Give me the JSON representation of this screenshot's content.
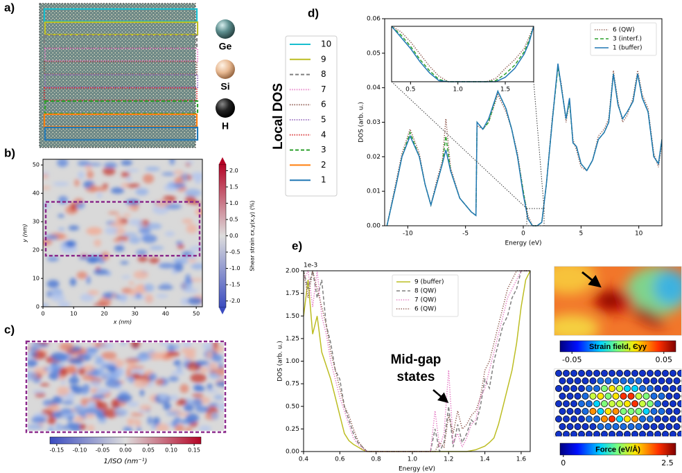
{
  "panel_labels": {
    "a": "a)",
    "b": "b)",
    "c": "c)",
    "d": "d)",
    "e": "e)"
  },
  "panel_a": {
    "atoms": [
      "Ge",
      "Si",
      "H"
    ],
    "layer_legend": {
      "title": "Local DOS",
      "entries": [
        {
          "name": "10",
          "color": "#17becf",
          "dash": "solid"
        },
        {
          "name": "9",
          "color": "#bcbd22",
          "dash": "solid"
        },
        {
          "name": "8",
          "color": "#7f7f7f",
          "dash": "dashed"
        },
        {
          "name": "7",
          "color": "#e377c2",
          "dash": "dotted"
        },
        {
          "name": "6",
          "color": "#8c564b",
          "dash": "dotted"
        },
        {
          "name": "5",
          "color": "#9467bd",
          "dash": "dotted"
        },
        {
          "name": "4",
          "color": "#d62728",
          "dash": "dotted"
        },
        {
          "name": "3",
          "color": "#2ca02c",
          "dash": "dashed"
        },
        {
          "name": "2",
          "color": "#ff7f0e",
          "dash": "solid"
        },
        {
          "name": "1",
          "color": "#1f77b4",
          "dash": "solid"
        }
      ]
    }
  },
  "chart_data": [
    {
      "type": "line",
      "xlabel": "Energy (eV)",
      "ylabel": "DOS (arb. u.)",
      "xlim": [
        -12,
        12
      ],
      "ylim": [
        0,
        0.06
      ],
      "xticks": [
        -10,
        -5,
        0,
        5,
        10
      ],
      "yticks": [
        {
          "value": 0,
          "label": "0.00"
        },
        0.01,
        0.02,
        0.03,
        0.04,
        0.05,
        0.06
      ],
      "legend": "upper right",
      "x": [
        -11.8,
        -11,
        -10.5,
        -9.8,
        -9,
        -8.5,
        -8,
        -7.5,
        -7,
        -6.7,
        -6.3,
        -5.5,
        -4.5,
        -4.1,
        -4,
        -3.5,
        -3,
        -2.2,
        -1.5,
        -1,
        -0.5,
        0,
        0.4,
        0.8,
        1.2,
        1.6,
        2,
        2.5,
        3,
        3.3,
        3.7,
        4,
        4.3,
        4.6,
        5,
        5.5,
        6,
        6.5,
        7,
        7.4,
        7.8,
        8.2,
        8.6,
        9,
        9.5,
        9.9,
        10.3,
        10.8,
        11.3,
        11.7,
        12
      ],
      "series": [
        {
          "name": "6 (QW)",
          "color": "#8c564b",
          "dash": "dotted",
          "values": [
            0,
            0.013,
            0.021,
            0.028,
            0.021,
            0.012,
            0.006,
            0.013,
            0.019,
            0.031,
            0.017,
            0.008,
            0.004,
            0.003,
            0.029,
            0.028,
            0.03,
            0.038,
            0.033,
            0.028,
            0.021,
            0.01,
            0.003,
            0,
            0,
            0.001,
            0.012,
            0.031,
            0.046,
            0.041,
            0.03,
            0.036,
            0.025,
            0.022,
            0.017,
            0.016,
            0.019,
            0.026,
            0.028,
            0.031,
            0.045,
            0.036,
            0.03,
            0.032,
            0.037,
            0.045,
            0.038,
            0.034,
            0.021,
            0.017,
            0.024
          ]
        },
        {
          "name": "3 (interf.)",
          "color": "#2ca02c",
          "dash": "dashed",
          "values": [
            0,
            0.012,
            0.02,
            0.027,
            0.02,
            0.012,
            0.006,
            0.012,
            0.018,
            0.026,
            0.016,
            0.008,
            0.004,
            0.003,
            0.03,
            0.028,
            0.03,
            0.039,
            0.034,
            0.028,
            0.02,
            0.01,
            0.002,
            0,
            0,
            0.001,
            0.012,
            0.03,
            0.046,
            0.04,
            0.031,
            0.036,
            0.024,
            0.023,
            0.018,
            0.016,
            0.019,
            0.025,
            0.027,
            0.03,
            0.044,
            0.035,
            0.031,
            0.033,
            0.036,
            0.044,
            0.037,
            0.033,
            0.02,
            0.018,
            0.025
          ]
        },
        {
          "name": "1 (buffer)",
          "color": "#1f77b4",
          "dash": "solid",
          "values": [
            0,
            0.012,
            0.02,
            0.026,
            0.02,
            0.012,
            0.006,
            0.012,
            0.018,
            0.022,
            0.016,
            0.008,
            0.004,
            0.003,
            0.03,
            0.028,
            0.031,
            0.039,
            0.034,
            0.028,
            0.02,
            0.009,
            0.002,
            0,
            0,
            0.001,
            0.012,
            0.03,
            0.047,
            0.04,
            0.031,
            0.037,
            0.024,
            0.023,
            0.018,
            0.016,
            0.019,
            0.025,
            0.027,
            0.03,
            0.044,
            0.035,
            0.031,
            0.033,
            0.036,
            0.044,
            0.037,
            0.033,
            0.02,
            0.018,
            0.025
          ]
        }
      ]
    },
    {
      "type": "line",
      "xlim": [
        0.3,
        1.8
      ],
      "ylim": [
        0,
        0.005
      ],
      "xticks": [
        0.5,
        {
          "value": 1,
          "label": "1.0"
        },
        1.5
      ],
      "x": [
        0.3,
        0.4,
        0.5,
        0.6,
        0.7,
        0.8,
        0.9,
        1.0,
        1.1,
        1.2,
        1.3,
        1.4,
        1.5,
        1.6,
        1.7,
        1.75,
        1.8
      ],
      "series": [
        {
          "color": "#8c564b",
          "dash": "dotted",
          "values": [
            0.005,
            0.0045,
            0.0036,
            0.0025,
            0.0014,
            0.0005,
            0,
            0,
            0,
            0,
            0,
            0.0003,
            0.0012,
            0.002,
            0.003,
            0.004,
            0.005
          ]
        },
        {
          "color": "#2ca02c",
          "dash": "dashed",
          "values": [
            0.005,
            0.0042,
            0.0032,
            0.002,
            0.001,
            0.0002,
            0,
            0,
            0,
            0,
            0,
            0.0001,
            0.0007,
            0.0015,
            0.0027,
            0.0037,
            0.005
          ]
        },
        {
          "color": "#1f77b4",
          "dash": "solid",
          "values": [
            0.005,
            0.004,
            0.003,
            0.0018,
            0.0008,
            0.0001,
            0,
            0,
            0,
            0,
            0,
            0,
            0.0004,
            0.0012,
            0.0025,
            0.0035,
            0.005
          ]
        }
      ]
    },
    {
      "type": "line",
      "xlabel": "Energy (eV)",
      "ylabel": "DOS (arb. u.)",
      "offset_text": "1e-3",
      "annotation": [
        "Mid-gap",
        "states"
      ],
      "xlim": [
        0.4,
        1.65
      ],
      "ylim": [
        0,
        2.0
      ],
      "xticks": [
        0.4,
        0.6,
        0.8,
        {
          "value": 1,
          "label": "1.0"
        },
        1.2,
        1.4,
        1.6
      ],
      "yticks": [
        {
          "value": 0,
          "label": "0.00"
        },
        0.25,
        {
          "value": 0.5,
          "label": "0.50"
        },
        0.75,
        {
          "value": 1,
          "label": "1.00"
        },
        1.25,
        {
          "value": 1.5,
          "label": "1.50"
        },
        1.75,
        {
          "value": 2,
          "label": "2.00"
        }
      ],
      "legend": "upper center",
      "x": [
        0.4,
        0.425,
        0.45,
        0.475,
        0.5,
        0.525,
        0.55,
        0.575,
        0.6,
        0.625,
        0.65,
        0.675,
        0.7,
        0.725,
        0.75,
        0.775,
        0.8,
        0.825,
        0.85,
        0.875,
        0.9,
        0.925,
        0.95,
        0.975,
        1.0,
        1.025,
        1.05,
        1.075,
        1.1,
        1.125,
        1.15,
        1.175,
        1.2,
        1.225,
        1.25,
        1.275,
        1.3,
        1.325,
        1.35,
        1.375,
        1.4,
        1.425,
        1.45,
        1.475,
        1.5,
        1.525,
        1.55,
        1.575,
        1.6,
        1.625,
        1.65
      ],
      "series": [
        {
          "name": "9 (buffer)",
          "color": "#bcbd22",
          "dash": "solid",
          "values": [
            1.5,
            1.9,
            1.3,
            1.5,
            1.1,
            0.95,
            0.8,
            0.6,
            0.4,
            0.2,
            0.12,
            0.08,
            0.05,
            0.02,
            0,
            0,
            0,
            0,
            0,
            0,
            0,
            0,
            0,
            0,
            0,
            0,
            0,
            0,
            0,
            0,
            0,
            0,
            0,
            0,
            0,
            0,
            0,
            0.01,
            0.02,
            0.04,
            0.06,
            0.1,
            0.15,
            0.3,
            0.5,
            0.7,
            0.9,
            1.2,
            1.6,
            1.9,
            2.0
          ]
        },
        {
          "name": "8 (QW)",
          "color": "#7f7f7f",
          "dash": "dashed",
          "values": [
            2.0,
            1.8,
            2.0,
            1.7,
            1.9,
            1.4,
            1.2,
            0.9,
            0.8,
            0.5,
            0.35,
            0.2,
            0.1,
            0.05,
            0,
            0,
            0,
            0,
            0,
            0,
            0,
            0,
            0,
            0,
            0,
            0,
            0,
            0,
            0,
            0.25,
            0,
            0.1,
            0.5,
            0.05,
            0.3,
            0.1,
            0.2,
            0.35,
            0.3,
            0.5,
            0.8,
            0.7,
            1.0,
            1.2,
            1.4,
            1.5,
            1.7,
            1.8,
            2.0,
            2.0,
            2.0
          ]
        },
        {
          "name": "7 (QW)",
          "color": "#e377c2",
          "dash": "dotted",
          "values": [
            1.9,
            2.0,
            1.6,
            2.0,
            1.5,
            1.3,
            1.0,
            0.8,
            0.6,
            0.45,
            0.3,
            0.15,
            0.08,
            0.03,
            0,
            0,
            0,
            0,
            0,
            0,
            0,
            0,
            0,
            0,
            0,
            0,
            0,
            0,
            0,
            0.45,
            0.05,
            0.2,
            0.9,
            0.1,
            0.2,
            0.05,
            0.15,
            0.3,
            0.35,
            0.6,
            0.7,
            0.9,
            1.1,
            1.3,
            1.5,
            1.7,
            1.8,
            1.9,
            2.0,
            2.0,
            2.0
          ]
        },
        {
          "name": "6 (QW)",
          "color": "#8c564b",
          "dash": "dotted",
          "values": [
            2.0,
            1.7,
            2.0,
            1.8,
            1.6,
            1.4,
            1.1,
            0.9,
            0.7,
            0.5,
            0.4,
            0.25,
            0.12,
            0.05,
            0,
            0,
            0,
            0,
            0,
            0,
            0,
            0,
            0,
            0,
            0,
            0,
            0,
            0,
            0,
            0,
            0.1,
            0.05,
            0.4,
            0.2,
            0.45,
            0.25,
            0.3,
            0.4,
            0.45,
            0.6,
            0.9,
            1.0,
            1.2,
            1.4,
            1.6,
            1.8,
            1.9,
            2.0,
            2.0,
            2.0,
            2.0
          ]
        }
      ]
    },
    {
      "type": "heatmap",
      "xlabel": "x (nm)",
      "ylabel": "y (nm)",
      "xlim": [
        0,
        52
      ],
      "ylim": [
        0,
        52
      ],
      "xticks": [
        0,
        10,
        20,
        30,
        40,
        50
      ],
      "yticks": [
        0,
        10,
        20,
        30,
        40,
        50
      ],
      "colorbar_label": "Shear strain εx,y(x,y) (%)",
      "colorbar_lim": [
        -2.2,
        2.2
      ],
      "colorbar_ticks": [
        {
          "value": -2,
          "label": "-2.0"
        },
        -1.5,
        {
          "value": -1,
          "label": "-1.0"
        },
        -0.5,
        {
          "value": 0,
          "label": "0.0"
        },
        0.5,
        {
          "value": 1,
          "label": "1.0"
        },
        1.5,
        {
          "value": 2,
          "label": "2.0"
        }
      ]
    },
    {
      "type": "heatmap",
      "colorbar_label": "1/lSO (nm⁻¹)",
      "colorbar_lim": [
        -0.165,
        0.165
      ],
      "colorbar_ticks": [
        -0.15,
        {
          "value": -0.1,
          "label": "-0.10"
        },
        -0.05,
        {
          "value": 0,
          "label": "0.00"
        },
        0.05,
        {
          "value": 0.1,
          "label": "0.10"
        },
        0.15
      ]
    },
    {
      "type": "heatmap",
      "colorbar_label": "Strain field, Єyy",
      "colorbar_lim": [
        -0.063,
        0.063
      ],
      "colorbar_ticks": [
        -0.05,
        0.05
      ]
    },
    {
      "type": "heatmap",
      "colorbar_label": "Force (eV/Å)",
      "colorbar_lim": [
        -0.08,
        2.7
      ],
      "colorbar_ticks": [
        0,
        2.5
      ]
    }
  ]
}
